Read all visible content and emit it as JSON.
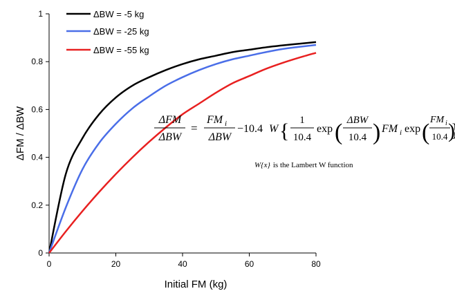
{
  "chart_data": {
    "type": "line",
    "xlabel": "Initial FM (kg)",
    "ylabel": "ΔFM / ΔBW",
    "xlim": [
      0,
      80
    ],
    "ylim": [
      0,
      1
    ],
    "x_ticks": [
      "0",
      "20",
      "40",
      "60",
      "80"
    ],
    "y_ticks": [
      "0",
      "0.2",
      "0.4",
      "0.6",
      "0.8",
      "1"
    ],
    "grid": false,
    "legend_position": "top-left",
    "x": [
      0,
      5,
      10,
      15,
      20,
      25,
      30,
      35,
      40,
      45,
      50,
      55,
      60,
      65,
      70,
      75,
      80
    ],
    "series": [
      {
        "name": "ΔBW = -5 kg",
        "color": "#000000",
        "values": [
          0,
          0.33,
          0.48,
          0.58,
          0.65,
          0.7,
          0.735,
          0.765,
          0.79,
          0.81,
          0.825,
          0.84,
          0.85,
          0.86,
          0.868,
          0.875,
          0.882
        ]
      },
      {
        "name": "ΔBW = -25 kg",
        "color": "#4a6ee8",
        "values": [
          0,
          0.19,
          0.35,
          0.46,
          0.54,
          0.605,
          0.655,
          0.7,
          0.735,
          0.765,
          0.79,
          0.81,
          0.825,
          0.84,
          0.853,
          0.862,
          0.87
        ]
      },
      {
        "name": "ΔBW = -55 kg",
        "color": "#e82020",
        "values": [
          0,
          0.09,
          0.175,
          0.255,
          0.33,
          0.4,
          0.465,
          0.525,
          0.58,
          0.625,
          0.67,
          0.71,
          0.74,
          0.77,
          0.795,
          0.817,
          0.837
        ]
      }
    ],
    "annotations": {
      "eq_lhs_num": "ΔFM",
      "eq_lhs_den": "ΔBW",
      "eq_equals": "=",
      "eq_t1_num": "FM",
      "eq_t1_num_sub": "i",
      "eq_t1_den": "ΔBW",
      "eq_minus": "−10.4",
      "eq_W": "W",
      "eq_brace_open": "{",
      "eq_frac1_num": "1",
      "eq_frac1_den": "10.4",
      "eq_exp1": "exp",
      "eq_paren1_open": "(",
      "eq_frac2_num": "ΔBW",
      "eq_frac2_den": "10.4",
      "eq_paren1_close": ")",
      "eq_fm": "FM",
      "eq_fm_sub": "i",
      "eq_exp2": "exp",
      "eq_paren2_open": "(",
      "eq_frac3_num": "FM",
      "eq_frac3_num_sub": "i",
      "eq_frac3_den": "10.4",
      "eq_paren2_close": ")",
      "eq_brace_close": "}",
      "note_w": "W",
      "note_x": "{x}",
      "note_rest": "is the Lambert W function"
    }
  }
}
